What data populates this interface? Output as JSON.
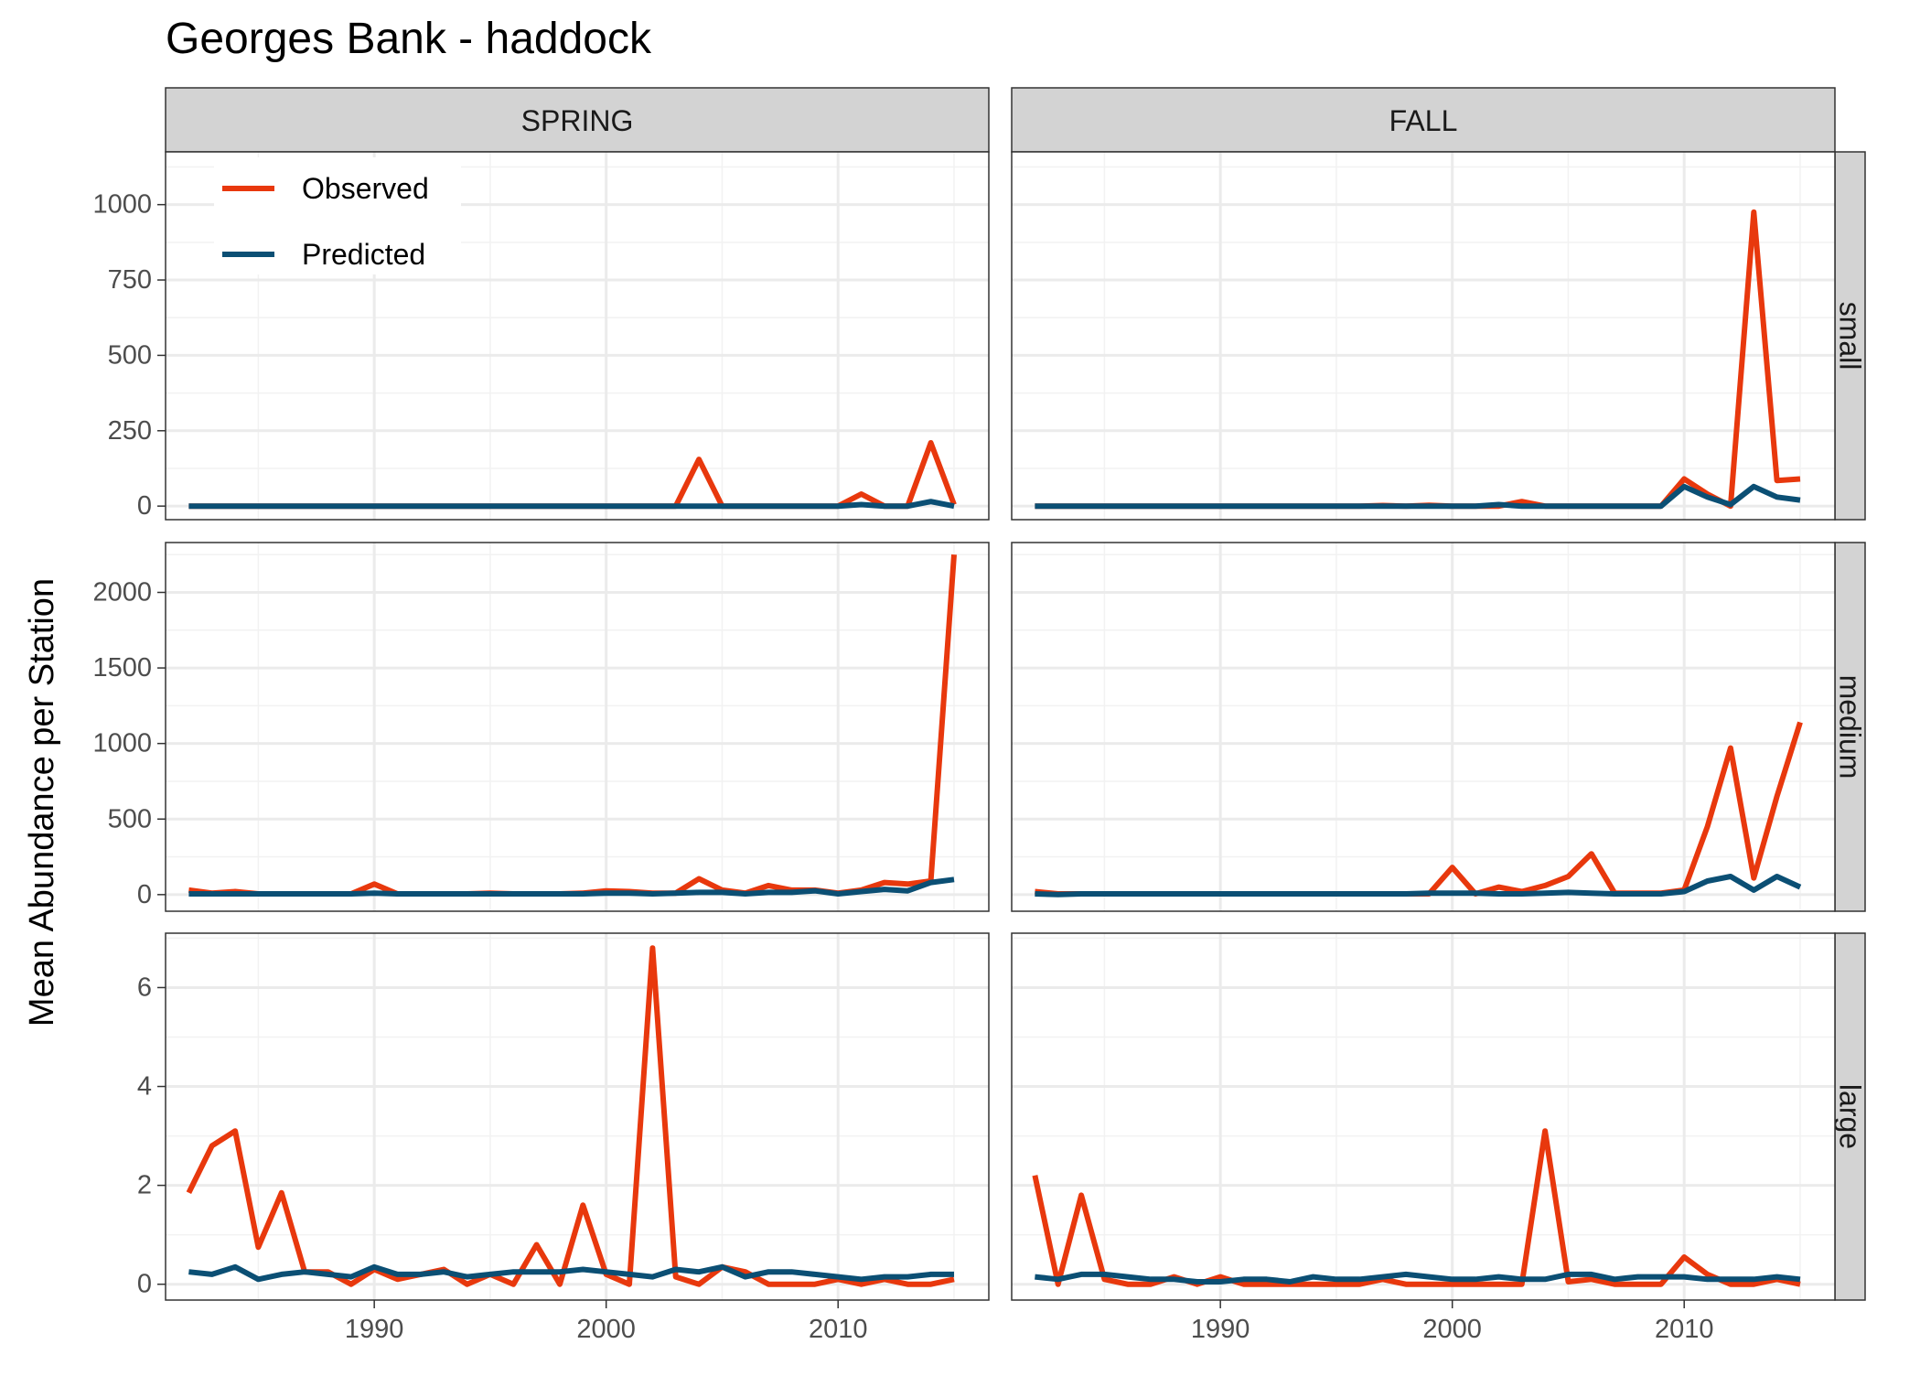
{
  "chart_data": {
    "type": "line",
    "title": "Georges Bank - haddock",
    "ylabel": "Mean Abundance per Station",
    "xlabel": "",
    "legend": {
      "placement": "top-left inside",
      "entries": [
        {
          "name": "Observed",
          "color": "#E8380D"
        },
        {
          "name": "Predicted",
          "color": "#0B4F74"
        }
      ]
    },
    "colors": {
      "observed": "#E8380D",
      "predicted": "#0B4F74",
      "strip": "#D3D3D3",
      "grid": "#EBEBEB"
    },
    "columns": [
      "SPRING",
      "FALL"
    ],
    "rows": [
      "small",
      "medium",
      "large"
    ],
    "xlim": [
      1981,
      2016.5
    ],
    "x_ticks": [
      1990,
      2000,
      2010
    ],
    "x_tick_labels": [
      "1990",
      "2000",
      "2010"
    ],
    "years": [
      1982,
      1983,
      1984,
      1985,
      1986,
      1987,
      1988,
      1989,
      1990,
      1991,
      1992,
      1993,
      1994,
      1995,
      1996,
      1997,
      1998,
      1999,
      2000,
      2001,
      2002,
      2003,
      2004,
      2005,
      2006,
      2007,
      2008,
      2009,
      2010,
      2011,
      2012,
      2013,
      2014,
      2015
    ],
    "row_scales": [
      {
        "row": "small",
        "ylim": [
          -45,
          1175
        ],
        "ticks": [
          0,
          250,
          500,
          750,
          1000
        ],
        "tick_labels": [
          "0",
          "250",
          "500",
          "750",
          "1000"
        ]
      },
      {
        "row": "medium",
        "ylim": [
          -110,
          2330
        ],
        "ticks": [
          0,
          500,
          1000,
          1500,
          2000
        ],
        "tick_labels": [
          "0",
          "500",
          "1000",
          "1500",
          "2000"
        ]
      },
      {
        "row": "large",
        "ylim": [
          -0.32,
          7.1
        ],
        "ticks": [
          0,
          2,
          4,
          6
        ],
        "tick_labels": [
          "0",
          "2",
          "4",
          "6"
        ]
      }
    ],
    "panels": [
      {
        "column": "SPRING",
        "row": "small",
        "observed": [
          0,
          0,
          0,
          0,
          0,
          0,
          0,
          0,
          0,
          0,
          0,
          0,
          0,
          0,
          0,
          0,
          0,
          0,
          0,
          0,
          0,
          0,
          155,
          0,
          0,
          0,
          0,
          0,
          0,
          40,
          0,
          0,
          210,
          5
        ],
        "predicted": [
          0,
          0,
          0,
          0,
          0,
          0,
          0,
          0,
          0,
          0,
          0,
          0,
          0,
          0,
          0,
          0,
          0,
          0,
          0,
          0,
          0,
          0,
          0,
          0,
          0,
          0,
          0,
          0,
          0,
          5,
          0,
          0,
          15,
          0
        ]
      },
      {
        "column": "FALL",
        "row": "small",
        "observed": [
          0,
          0,
          0,
          0,
          0,
          0,
          0,
          0,
          0,
          0,
          0,
          0,
          0,
          0,
          0,
          2,
          0,
          3,
          0,
          0,
          0,
          15,
          0,
          0,
          0,
          0,
          0,
          0,
          90,
          40,
          0,
          975,
          85,
          90
        ],
        "predicted": [
          0,
          0,
          0,
          0,
          0,
          0,
          0,
          0,
          0,
          0,
          0,
          0,
          0,
          0,
          0,
          0,
          0,
          0,
          0,
          0,
          5,
          0,
          0,
          0,
          0,
          0,
          0,
          0,
          65,
          30,
          5,
          65,
          30,
          20
        ]
      },
      {
        "column": "SPRING",
        "row": "medium",
        "observed": [
          30,
          10,
          20,
          5,
          5,
          5,
          5,
          5,
          70,
          5,
          5,
          5,
          5,
          10,
          5,
          5,
          5,
          10,
          25,
          20,
          10,
          10,
          105,
          30,
          10,
          60,
          30,
          30,
          10,
          30,
          80,
          70,
          90,
          2250
        ],
        "predicted": [
          5,
          5,
          5,
          5,
          5,
          5,
          5,
          5,
          10,
          5,
          5,
          5,
          5,
          5,
          5,
          5,
          5,
          5,
          10,
          10,
          5,
          10,
          15,
          15,
          5,
          15,
          15,
          25,
          5,
          20,
          35,
          25,
          80,
          100
        ]
      },
      {
        "column": "FALL",
        "row": "medium",
        "observed": [
          20,
          5,
          5,
          5,
          5,
          5,
          5,
          5,
          5,
          5,
          5,
          5,
          5,
          5,
          5,
          5,
          5,
          5,
          180,
          5,
          50,
          20,
          60,
          120,
          270,
          10,
          10,
          10,
          30,
          450,
          970,
          110,
          650,
          1140
        ],
        "predicted": [
          5,
          0,
          5,
          5,
          5,
          5,
          5,
          5,
          5,
          5,
          5,
          5,
          5,
          5,
          5,
          5,
          5,
          10,
          10,
          10,
          5,
          5,
          10,
          15,
          10,
          5,
          5,
          5,
          20,
          90,
          120,
          30,
          120,
          50
        ]
      },
      {
        "column": "SPRING",
        "row": "large",
        "observed": [
          1.85,
          2.8,
          3.1,
          0.75,
          1.85,
          0.25,
          0.25,
          0.0,
          0.3,
          0.1,
          0.2,
          0.3,
          0.0,
          0.2,
          0.0,
          0.8,
          0.0,
          1.6,
          0.2,
          0.0,
          6.8,
          0.15,
          0.0,
          0.35,
          0.25,
          0.0,
          0.0,
          0.0,
          0.1,
          0.0,
          0.1,
          0.0,
          0.0,
          0.1
        ],
        "predicted": [
          0.25,
          0.2,
          0.35,
          0.1,
          0.2,
          0.25,
          0.2,
          0.15,
          0.35,
          0.2,
          0.2,
          0.25,
          0.15,
          0.2,
          0.25,
          0.25,
          0.25,
          0.3,
          0.25,
          0.2,
          0.15,
          0.3,
          0.25,
          0.35,
          0.15,
          0.25,
          0.25,
          0.2,
          0.15,
          0.1,
          0.15,
          0.15,
          0.2,
          0.2
        ]
      },
      {
        "column": "FALL",
        "row": "large",
        "observed": [
          2.2,
          0.0,
          1.8,
          0.1,
          0.0,
          0.0,
          0.15,
          0.0,
          0.15,
          0.0,
          0.0,
          0.0,
          0.0,
          0.0,
          0.0,
          0.1,
          0.0,
          0.0,
          0.0,
          0.0,
          0.0,
          0.0,
          3.1,
          0.05,
          0.1,
          0.0,
          0.0,
          0.0,
          0.55,
          0.2,
          0.0,
          0.0,
          0.1,
          0.0
        ],
        "predicted": [
          0.15,
          0.1,
          0.2,
          0.2,
          0.15,
          0.1,
          0.1,
          0.05,
          0.05,
          0.1,
          0.1,
          0.05,
          0.15,
          0.1,
          0.1,
          0.15,
          0.2,
          0.15,
          0.1,
          0.1,
          0.15,
          0.1,
          0.1,
          0.2,
          0.2,
          0.1,
          0.15,
          0.15,
          0.15,
          0.1,
          0.1,
          0.1,
          0.15,
          0.1
        ]
      }
    ]
  }
}
